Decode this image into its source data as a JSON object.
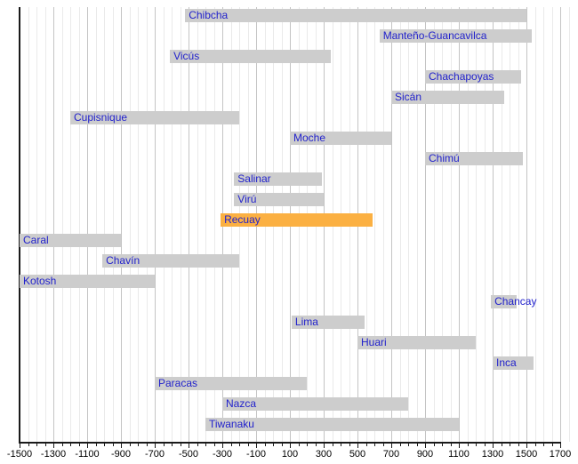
{
  "chart_data": {
    "type": "bar",
    "variant": "horizontal-timeline-gantt",
    "title": "",
    "xlabel": "",
    "ylabel": "",
    "grid": true,
    "legend": null,
    "axis": {
      "min": -1500,
      "max": 1700,
      "major_step": 200,
      "minor_step": 50
    },
    "x_ticks": [
      -1500,
      -1300,
      -1100,
      -900,
      -700,
      -500,
      -300,
      -100,
      100,
      300,
      500,
      700,
      900,
      1100,
      1300,
      1500,
      1700
    ],
    "bars": [
      {
        "label": "Chibcha",
        "from": -520,
        "till": 1500
      },
      {
        "label": "Manteño-Guancavilca",
        "from": 630,
        "till": 1530
      },
      {
        "label": "Vicús",
        "from": -610,
        "till": 340
      },
      {
        "label": "Chachapoyas",
        "from": 900,
        "till": 1470
      },
      {
        "label": "Sicán",
        "from": 700,
        "till": 1370
      },
      {
        "label": "Cupisnique",
        "from": -1200,
        "till": -200
      },
      {
        "label": "Moche",
        "from": 100,
        "till": 700
      },
      {
        "label": "Chimú",
        "from": 900,
        "till": 1480
      },
      {
        "label": "Salinar",
        "from": -230,
        "till": 290
      },
      {
        "label": "Virú",
        "from": -230,
        "till": 300
      },
      {
        "label": "Recuay",
        "from": -310,
        "till": 590,
        "highlight": true
      },
      {
        "label": "Caral",
        "from": -1500,
        "till": -900
      },
      {
        "label": "Chavín",
        "from": -1010,
        "till": -200
      },
      {
        "label": "Kotosh",
        "from": -1500,
        "till": -700
      },
      {
        "label": "Chancay",
        "from": 1290,
        "till": 1440
      },
      {
        "label": "Lima",
        "from": 110,
        "till": 540
      },
      {
        "label": "Huari",
        "from": 500,
        "till": 1200
      },
      {
        "label": "Inca",
        "from": 1300,
        "till": 1540
      },
      {
        "label": "Paracas",
        "from": -700,
        "till": 200
      },
      {
        "label": "Nazca",
        "from": -300,
        "till": 800
      },
      {
        "label": "Tiwanaku",
        "from": -400,
        "till": 1100
      }
    ],
    "colors": {
      "background": "#FFFFFF",
      "bar_fill": "#CDCDCD",
      "highlight_fill": "#FBB042",
      "label_text": "#2222CC",
      "axis_line": "#1A1A1A",
      "tick_text": "#000000",
      "grid_minor": "#EAEAEA",
      "grid_major": "#C4C4C4"
    }
  }
}
